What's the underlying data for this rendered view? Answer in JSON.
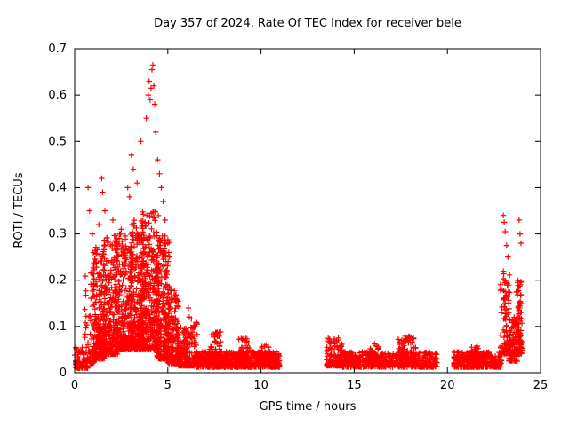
{
  "chart_data": {
    "type": "scatter",
    "title": "Day 357 of 2024, Rate Of TEC Index for receiver bele",
    "xlabel": "GPS time / hours",
    "ylabel": "ROTI / TECUs",
    "xlim": [
      0,
      25
    ],
    "ylim": [
      0,
      0.7
    ],
    "xticks": [
      0,
      5,
      10,
      15,
      20,
      25
    ],
    "xtick_labels": [
      "0",
      "5",
      "10",
      "15",
      "20",
      "25"
    ],
    "yticks": [
      0,
      0.1,
      0.2,
      0.3,
      0.4,
      0.5,
      0.6,
      0.7
    ],
    "ytick_labels": [
      "0",
      "0.1",
      "0.2",
      "0.3",
      "0.4",
      "0.5",
      "0.6",
      "0.7"
    ],
    "legend": "none",
    "grid": false,
    "marker": "plus",
    "marker_color": "#ff0000",
    "axis_color": "#000000",
    "seed": 357,
    "bands": [
      [
        0.0,
        0.7,
        70,
        0.01,
        0.06,
        2.0
      ],
      [
        0.55,
        1.05,
        60,
        0.02,
        0.22,
        2.5
      ],
      [
        1.0,
        1.6,
        220,
        0.03,
        0.28,
        2.2
      ],
      [
        1.5,
        2.3,
        260,
        0.04,
        0.3,
        2.2
      ],
      [
        2.2,
        3.1,
        300,
        0.05,
        0.3,
        2.0
      ],
      [
        3.0,
        3.7,
        280,
        0.05,
        0.33,
        1.9
      ],
      [
        3.6,
        4.5,
        320,
        0.05,
        0.35,
        1.8
      ],
      [
        4.4,
        5.1,
        260,
        0.03,
        0.3,
        2.0
      ],
      [
        5.0,
        5.6,
        160,
        0.02,
        0.18,
        2.0
      ],
      [
        5.5,
        6.1,
        120,
        0.015,
        0.1,
        2.0
      ],
      [
        6.0,
        6.6,
        90,
        0.015,
        0.12,
        2.2
      ],
      [
        6.5,
        11.0,
        650,
        0.012,
        0.045,
        1.6
      ],
      [
        7.2,
        7.9,
        60,
        0.02,
        0.09,
        1.8
      ],
      [
        8.8,
        9.4,
        50,
        0.02,
        0.075,
        1.8
      ],
      [
        10.0,
        10.6,
        40,
        0.02,
        0.06,
        1.8
      ],
      [
        13.5,
        14.4,
        120,
        0.015,
        0.075,
        1.8
      ],
      [
        14.3,
        19.45,
        500,
        0.012,
        0.045,
        1.6
      ],
      [
        15.8,
        16.3,
        40,
        0.02,
        0.065,
        1.8
      ],
      [
        17.3,
        18.3,
        90,
        0.02,
        0.08,
        1.8
      ],
      [
        20.35,
        22.9,
        360,
        0.012,
        0.045,
        1.6
      ],
      [
        21.3,
        21.7,
        30,
        0.02,
        0.06,
        1.8
      ],
      [
        22.85,
        23.35,
        90,
        0.04,
        0.22,
        1.6
      ],
      [
        23.3,
        23.75,
        80,
        0.025,
        0.12,
        1.6
      ],
      [
        23.7,
        24.0,
        100,
        0.04,
        0.2,
        1.5
      ]
    ],
    "spikes": [
      [
        0.72,
        0.4
      ],
      [
        0.8,
        0.35
      ],
      [
        0.95,
        0.3
      ],
      [
        1.3,
        0.32
      ],
      [
        1.45,
        0.42
      ],
      [
        1.5,
        0.39
      ],
      [
        1.62,
        0.35
      ],
      [
        2.05,
        0.33
      ],
      [
        2.5,
        0.31
      ],
      [
        2.85,
        0.4
      ],
      [
        2.95,
        0.38
      ],
      [
        3.05,
        0.47
      ],
      [
        3.15,
        0.44
      ],
      [
        3.35,
        0.41
      ],
      [
        3.55,
        0.5
      ],
      [
        3.85,
        0.55
      ],
      [
        3.95,
        0.6
      ],
      [
        4.0,
        0.63
      ],
      [
        4.05,
        0.59
      ],
      [
        4.1,
        0.615
      ],
      [
        4.15,
        0.655
      ],
      [
        4.2,
        0.665
      ],
      [
        4.25,
        0.62
      ],
      [
        4.3,
        0.58
      ],
      [
        4.35,
        0.52
      ],
      [
        4.45,
        0.46
      ],
      [
        4.55,
        0.43
      ],
      [
        4.65,
        0.4
      ],
      [
        4.75,
        0.37
      ],
      [
        4.85,
        0.33
      ],
      [
        5.0,
        0.28
      ],
      [
        5.05,
        0.26
      ],
      [
        6.1,
        0.14
      ],
      [
        6.15,
        0.12
      ],
      [
        23.0,
        0.34
      ],
      [
        23.05,
        0.325
      ],
      [
        23.1,
        0.305
      ],
      [
        23.18,
        0.275
      ],
      [
        23.25,
        0.25
      ],
      [
        23.85,
        0.33
      ],
      [
        23.9,
        0.3
      ],
      [
        23.95,
        0.28
      ]
    ]
  }
}
